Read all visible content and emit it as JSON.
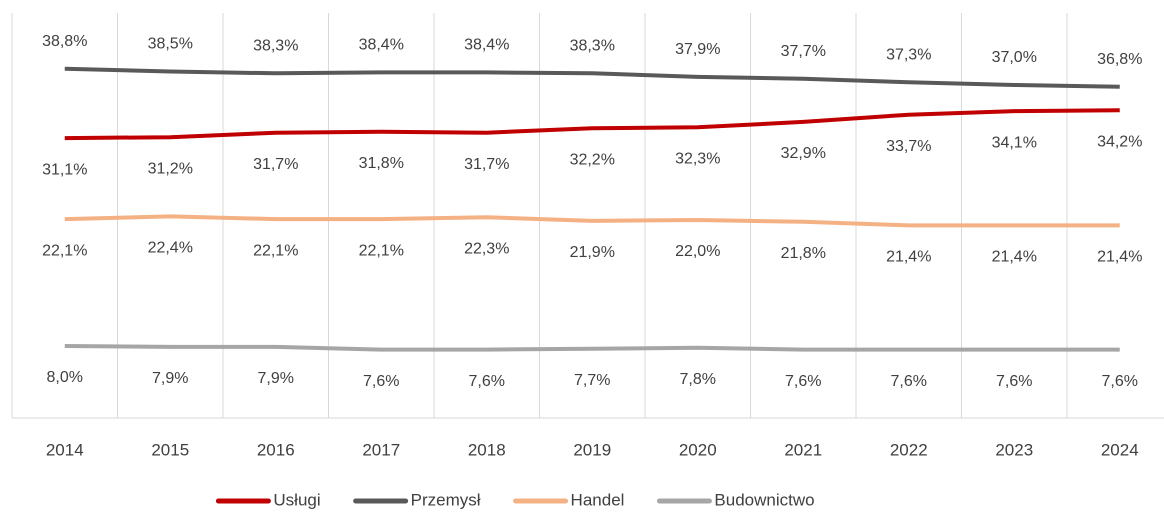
{
  "chart_data": {
    "type": "line",
    "categories": [
      "2014",
      "2015",
      "2016",
      "2017",
      "2018",
      "2019",
      "2020",
      "2021",
      "2022",
      "2023",
      "2024"
    ],
    "ylim": [
      0,
      45
    ],
    "legend": "bottom",
    "series": [
      {
        "name": "Usługi",
        "color": "#c00000",
        "label_position": "below",
        "values": [
          31.1,
          31.2,
          31.7,
          31.8,
          31.7,
          32.2,
          32.3,
          32.9,
          33.7,
          34.1,
          34.2
        ],
        "value_labels": [
          "31,1%",
          "31,2%",
          "31,7%",
          "31,8%",
          "31,7%",
          "32,2%",
          "32,3%",
          "32,9%",
          "33,7%",
          "34,1%",
          "34,2%"
        ]
      },
      {
        "name": "Przemysł",
        "color": "#595959",
        "label_position": "above",
        "values": [
          38.8,
          38.5,
          38.3,
          38.4,
          38.4,
          38.3,
          37.9,
          37.7,
          37.3,
          37.0,
          36.8
        ],
        "value_labels": [
          "38,8%",
          "38,5%",
          "38,3%",
          "38,4%",
          "38,4%",
          "38,3%",
          "37,9%",
          "37,7%",
          "37,3%",
          "37,0%",
          "36,8%"
        ]
      },
      {
        "name": "Handel",
        "color": "#f4b183",
        "label_position": "below",
        "values": [
          22.1,
          22.4,
          22.1,
          22.1,
          22.3,
          21.9,
          22.0,
          21.8,
          21.4,
          21.4,
          21.4
        ],
        "value_labels": [
          "22,1%",
          "22,4%",
          "22,1%",
          "22,1%",
          "22,3%",
          "21,9%",
          "22,0%",
          "21,8%",
          "21,4%",
          "21,4%",
          "21,4%"
        ]
      },
      {
        "name": "Budownictwo",
        "color": "#a6a6a6",
        "label_position": "below",
        "values": [
          8.0,
          7.9,
          7.9,
          7.6,
          7.6,
          7.7,
          7.8,
          7.6,
          7.6,
          7.6,
          7.6
        ],
        "value_labels": [
          "8,0%",
          "7,9%",
          "7,9%",
          "7,6%",
          "7,6%",
          "7,7%",
          "7,8%",
          "7,6%",
          "7,6%",
          "7,6%",
          "7,6%"
        ]
      }
    ]
  }
}
